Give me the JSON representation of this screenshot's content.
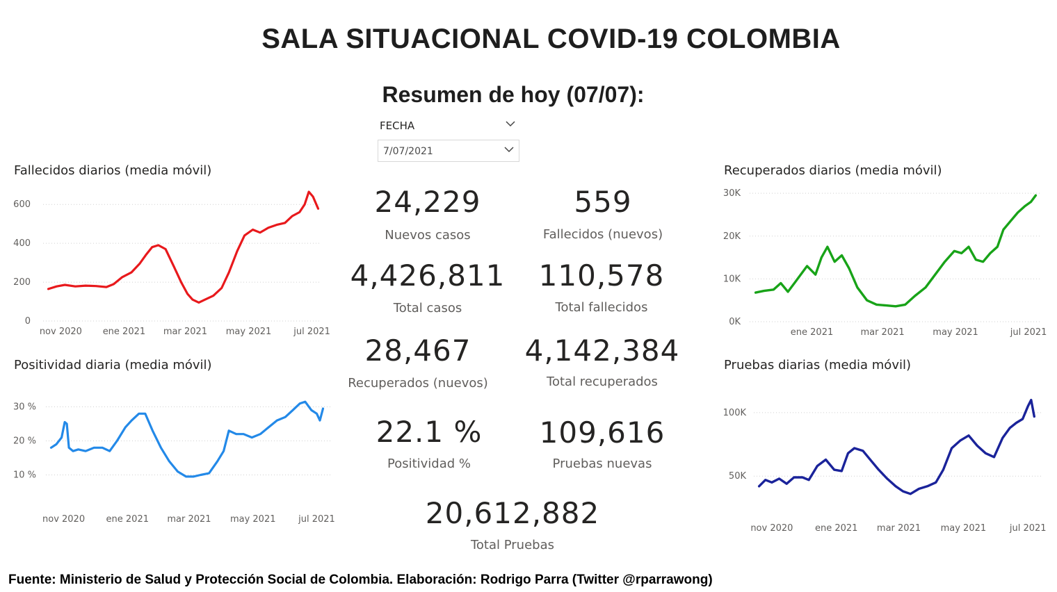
{
  "header": {
    "title": "SALA SITUACIONAL COVID-19 COLOMBIA",
    "subtitle": "Resumen de hoy (07/07):"
  },
  "slicer": {
    "label": "FECHA",
    "value": "7/07/2021",
    "chevron_icon": "chevron-down-icon"
  },
  "kpis": {
    "nuevos_casos": {
      "value": "24,229",
      "label": "Nuevos casos"
    },
    "fallecidos_nuevos": {
      "value": "559",
      "label": "Fallecidos (nuevos)"
    },
    "total_casos": {
      "value": "4,426,811",
      "label": "Total casos"
    },
    "total_fallecidos": {
      "value": "110,578",
      "label": "Total fallecidos"
    },
    "recuperados_nuevos": {
      "value": "28,467",
      "label": "Recuperados (nuevos)"
    },
    "total_recuperados": {
      "value": "4,142,384",
      "label": "Total recuperados"
    },
    "positividad": {
      "value": "22.1 %",
      "label": "Positividad %"
    },
    "pruebas_nuevas": {
      "value": "109,616",
      "label": "Pruebas nuevas"
    },
    "total_pruebas": {
      "value": "20,612,882",
      "label": "Total Pruebas"
    }
  },
  "footer": "Fuente: Ministerio de Salud y Protección Social de Colombia. Elaboración: Rodrigo Parra (Twitter @rparrawong)",
  "chart_data": [
    {
      "id": "fallecidos",
      "type": "line",
      "title": "Fallecidos diarios (media móvil)",
      "color": "#e8191c",
      "x_domain": [
        "2020-10-15",
        "2021-07-10"
      ],
      "x_ticks": [
        {
          "label": "nov 2020",
          "date": "2020-11-01"
        },
        {
          "label": "ene 2021",
          "date": "2021-01-01"
        },
        {
          "label": "mar 2021",
          "date": "2021-03-01"
        },
        {
          "label": "may 2021",
          "date": "2021-05-01"
        },
        {
          "label": "jul 2021",
          "date": "2021-07-01"
        }
      ],
      "y_ticks": [
        {
          "label": "0",
          "value": 0
        },
        {
          "label": "200",
          "value": 200
        },
        {
          "label": "400",
          "value": 400
        },
        {
          "label": "600",
          "value": 600
        }
      ],
      "ylim": [
        0,
        640
      ],
      "grid": true,
      "x": [
        "2020-10-20",
        "2020-10-28",
        "2020-11-05",
        "2020-11-15",
        "2020-11-25",
        "2020-12-05",
        "2020-12-15",
        "2020-12-22",
        "2020-12-30",
        "2021-01-08",
        "2021-01-16",
        "2021-01-22",
        "2021-01-28",
        "2021-02-03",
        "2021-02-10",
        "2021-02-18",
        "2021-02-25",
        "2021-03-03",
        "2021-03-08",
        "2021-03-14",
        "2021-03-20",
        "2021-03-28",
        "2021-04-05",
        "2021-04-12",
        "2021-04-20",
        "2021-04-27",
        "2021-05-05",
        "2021-05-12",
        "2021-05-20",
        "2021-05-28",
        "2021-06-05",
        "2021-06-12",
        "2021-06-19",
        "2021-06-24",
        "2021-06-28",
        "2021-07-02",
        "2021-07-07"
      ],
      "values": [
        165,
        178,
        186,
        178,
        182,
        180,
        175,
        190,
        225,
        250,
        295,
        340,
        380,
        390,
        370,
        280,
        200,
        140,
        110,
        95,
        110,
        130,
        170,
        250,
        360,
        440,
        470,
        455,
        480,
        495,
        505,
        540,
        560,
        600,
        665,
        640,
        578
      ]
    },
    {
      "id": "positividad",
      "type": "line",
      "title": "Positividad diaria (media móvil)",
      "color": "#2389e8",
      "x_domain": [
        "2020-10-15",
        "2021-07-14"
      ],
      "x_ticks": [
        {
          "label": "nov 2020",
          "date": "2020-11-01"
        },
        {
          "label": "ene 2021",
          "date": "2021-01-01"
        },
        {
          "label": "mar 2021",
          "date": "2021-03-01"
        },
        {
          "label": "may 2021",
          "date": "2021-05-01"
        },
        {
          "label": "jul 2021",
          "date": "2021-07-01"
        }
      ],
      "y_ticks": [
        {
          "label": "10 %",
          "value": 10
        },
        {
          "label": "20 %",
          "value": 20
        },
        {
          "label": "30 %",
          "value": 30
        }
      ],
      "ylim": [
        5,
        35
      ],
      "grid": true,
      "x": [
        "2020-10-20",
        "2020-10-25",
        "2020-10-30",
        "2020-11-02",
        "2020-11-04",
        "2020-11-06",
        "2020-11-10",
        "2020-11-15",
        "2020-11-22",
        "2020-11-30",
        "2020-12-08",
        "2020-12-15",
        "2020-12-22",
        "2020-12-30",
        "2021-01-05",
        "2021-01-12",
        "2021-01-18",
        "2021-01-25",
        "2021-02-02",
        "2021-02-10",
        "2021-02-18",
        "2021-02-26",
        "2021-03-05",
        "2021-03-12",
        "2021-03-20",
        "2021-03-28",
        "2021-04-03",
        "2021-04-08",
        "2021-04-15",
        "2021-04-22",
        "2021-04-30",
        "2021-05-08",
        "2021-05-16",
        "2021-05-24",
        "2021-06-01",
        "2021-06-08",
        "2021-06-15",
        "2021-06-20",
        "2021-06-26",
        "2021-07-01",
        "2021-07-04",
        "2021-07-07"
      ],
      "values": [
        18,
        19,
        21,
        25.5,
        25,
        18,
        17,
        17.5,
        17,
        18,
        18,
        17,
        20,
        24,
        26,
        28,
        28,
        23,
        18,
        14,
        11,
        9.5,
        9.5,
        10,
        10.5,
        14,
        17,
        23,
        22,
        22,
        21,
        22,
        24,
        26,
        27,
        29,
        31,
        31.5,
        29,
        28,
        26,
        29.5
      ]
    },
    {
      "id": "recuperados",
      "type": "line",
      "title": "Recuperados diarios (media móvil)",
      "color": "#18a318",
      "x_domain": [
        "2020-11-10",
        "2021-07-12"
      ],
      "x_ticks": [
        {
          "label": "ene 2021",
          "date": "2021-01-01"
        },
        {
          "label": "mar 2021",
          "date": "2021-03-01"
        },
        {
          "label": "may 2021",
          "date": "2021-05-01"
        },
        {
          "label": "jul 2021",
          "date": "2021-07-01"
        }
      ],
      "y_ticks": [
        {
          "label": "0K",
          "value": 0
        },
        {
          "label": "10K",
          "value": 10000
        },
        {
          "label": "20K",
          "value": 20000
        },
        {
          "label": "30K",
          "value": 30000
        }
      ],
      "ylim": [
        0,
        31000
      ],
      "grid": true,
      "x": [
        "2020-11-15",
        "2020-11-22",
        "2020-11-30",
        "2020-12-06",
        "2020-12-12",
        "2020-12-20",
        "2020-12-28",
        "2021-01-04",
        "2021-01-09",
        "2021-01-14",
        "2021-01-20",
        "2021-01-26",
        "2021-02-01",
        "2021-02-08",
        "2021-02-16",
        "2021-02-24",
        "2021-03-04",
        "2021-03-12",
        "2021-03-20",
        "2021-03-28",
        "2021-04-06",
        "2021-04-14",
        "2021-04-22",
        "2021-04-30",
        "2021-05-06",
        "2021-05-12",
        "2021-05-18",
        "2021-05-24",
        "2021-05-30",
        "2021-06-05",
        "2021-06-10",
        "2021-06-16",
        "2021-06-22",
        "2021-06-28",
        "2021-07-03",
        "2021-07-07"
      ],
      "values": [
        6800,
        7200,
        7500,
        9000,
        7000,
        10000,
        13000,
        11000,
        15000,
        17500,
        14000,
        15500,
        12500,
        8000,
        5000,
        4000,
        3800,
        3600,
        4000,
        6000,
        8000,
        11000,
        14000,
        16500,
        16000,
        17500,
        14500,
        14000,
        16000,
        17500,
        21500,
        23500,
        25500,
        27000,
        28000,
        29500
      ]
    },
    {
      "id": "pruebas",
      "type": "line",
      "title": "Pruebas diarias (media móvil)",
      "color": "#1a239a",
      "x_domain": [
        "2020-10-15",
        "2021-07-14"
      ],
      "x_ticks": [
        {
          "label": "nov 2020",
          "date": "2020-11-01"
        },
        {
          "label": "ene 2021",
          "date": "2021-01-01"
        },
        {
          "label": "mar 2021",
          "date": "2021-03-01"
        },
        {
          "label": "may 2021",
          "date": "2021-05-01"
        },
        {
          "label": "jul 2021",
          "date": "2021-07-01"
        }
      ],
      "y_ticks": [
        {
          "label": "50K",
          "value": 50000
        },
        {
          "label": "100K",
          "value": 100000
        }
      ],
      "ylim": [
        20000,
        118000
      ],
      "grid": true,
      "x": [
        "2020-10-20",
        "2020-10-26",
        "2020-11-01",
        "2020-11-08",
        "2020-11-15",
        "2020-11-22",
        "2020-11-30",
        "2020-12-06",
        "2020-12-14",
        "2020-12-22",
        "2020-12-30",
        "2021-01-06",
        "2021-01-12",
        "2021-01-18",
        "2021-01-26",
        "2021-02-03",
        "2021-02-10",
        "2021-02-18",
        "2021-02-26",
        "2021-03-05",
        "2021-03-12",
        "2021-03-20",
        "2021-03-28",
        "2021-04-05",
        "2021-04-12",
        "2021-04-20",
        "2021-04-28",
        "2021-05-06",
        "2021-05-14",
        "2021-05-22",
        "2021-05-30",
        "2021-06-07",
        "2021-06-14",
        "2021-06-20",
        "2021-06-26",
        "2021-07-01",
        "2021-07-04",
        "2021-07-07"
      ],
      "values": [
        42000,
        47000,
        45000,
        48000,
        44000,
        49000,
        49000,
        47000,
        58000,
        63000,
        55000,
        54000,
        68000,
        72000,
        70000,
        62000,
        55000,
        48000,
        42000,
        38000,
        36000,
        40000,
        42000,
        45000,
        55000,
        72000,
        78000,
        82000,
        74000,
        68000,
        65000,
        80000,
        88000,
        92000,
        95000,
        105000,
        110000,
        97000
      ]
    }
  ]
}
